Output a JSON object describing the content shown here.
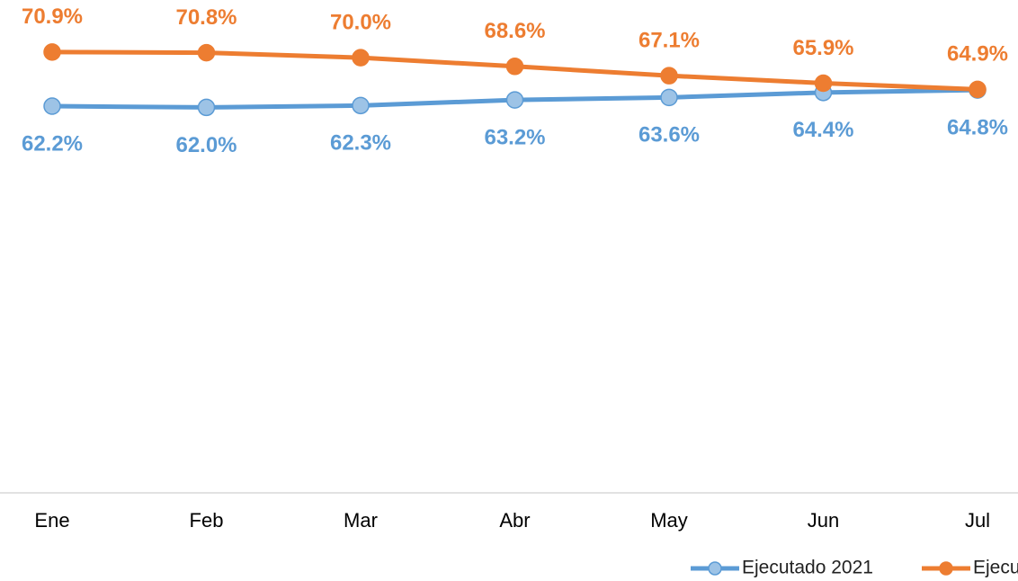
{
  "chart_data": {
    "type": "line",
    "categories": [
      "Ene",
      "Feb",
      "Mar",
      "Abr",
      "May",
      "Jun",
      "Jul"
    ],
    "series": [
      {
        "name": "Ejecutado 2021",
        "color": "#5b9bd5",
        "marker_fill": "#9dc3e6",
        "values": [
          62.2,
          62.0,
          62.3,
          63.2,
          63.6,
          64.4,
          64.8
        ],
        "value_labels": [
          "62.2%",
          "62.0%",
          "62.3%",
          "63.2%",
          "63.6%",
          "64.4%",
          "64.8%"
        ]
      },
      {
        "name": "Ejecu",
        "color": "#ed7d31",
        "marker_fill": "#ed7d31",
        "values": [
          70.9,
          70.8,
          70.0,
          68.6,
          67.1,
          65.9,
          64.9
        ],
        "value_labels": [
          "70.9%",
          "70.8%",
          "70.0%",
          "68.6%",
          "67.1%",
          "65.9%",
          "64.9%"
        ]
      }
    ],
    "ylim": [
      0,
      80
    ]
  }
}
